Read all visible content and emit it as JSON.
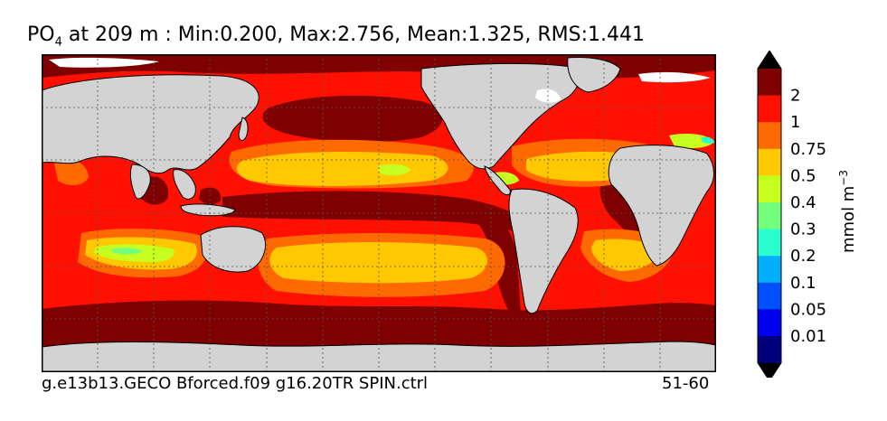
{
  "title": {
    "variable_main": "PO",
    "variable_sub": "4",
    "text": " at 209 m : Min:0.200, Max:2.756, Mean:1.325, RMS:1.441"
  },
  "footer": {
    "experiment": "g.e13b13.GECO Bforced.f09 g16.20TR SPIN.ctrl",
    "years": "51-60"
  },
  "colorbar": {
    "unit_label": "mmol m",
    "unit_exponent": "−3",
    "levels": [
      {
        "label": "2",
        "color": "#7f0000"
      },
      {
        "label": "1",
        "color": "#ff1000"
      },
      {
        "label": "0.75",
        "color": "#ff6a00"
      },
      {
        "label": "0.5",
        "color": "#ffc800"
      },
      {
        "label": "0.4",
        "color": "#c6ff1f"
      },
      {
        "label": "0.3",
        "color": "#72ff7c"
      },
      {
        "label": "0.2",
        "color": "#29ffce"
      },
      {
        "label": "0.1",
        "color": "#00b0ff"
      },
      {
        "label": "0.05",
        "color": "#0050ff"
      },
      {
        "label": "0.01",
        "color": "#0000ee"
      }
    ],
    "top_color": "#7f0000",
    "bottom_color": "#00007f",
    "under_extension_color": "#000000",
    "over_extension_color": "#000000"
  },
  "colors": {
    "land": "#d3d3d3",
    "ice": "#ffffff",
    "coast": "#000000",
    "grid": "#555555"
  }
}
